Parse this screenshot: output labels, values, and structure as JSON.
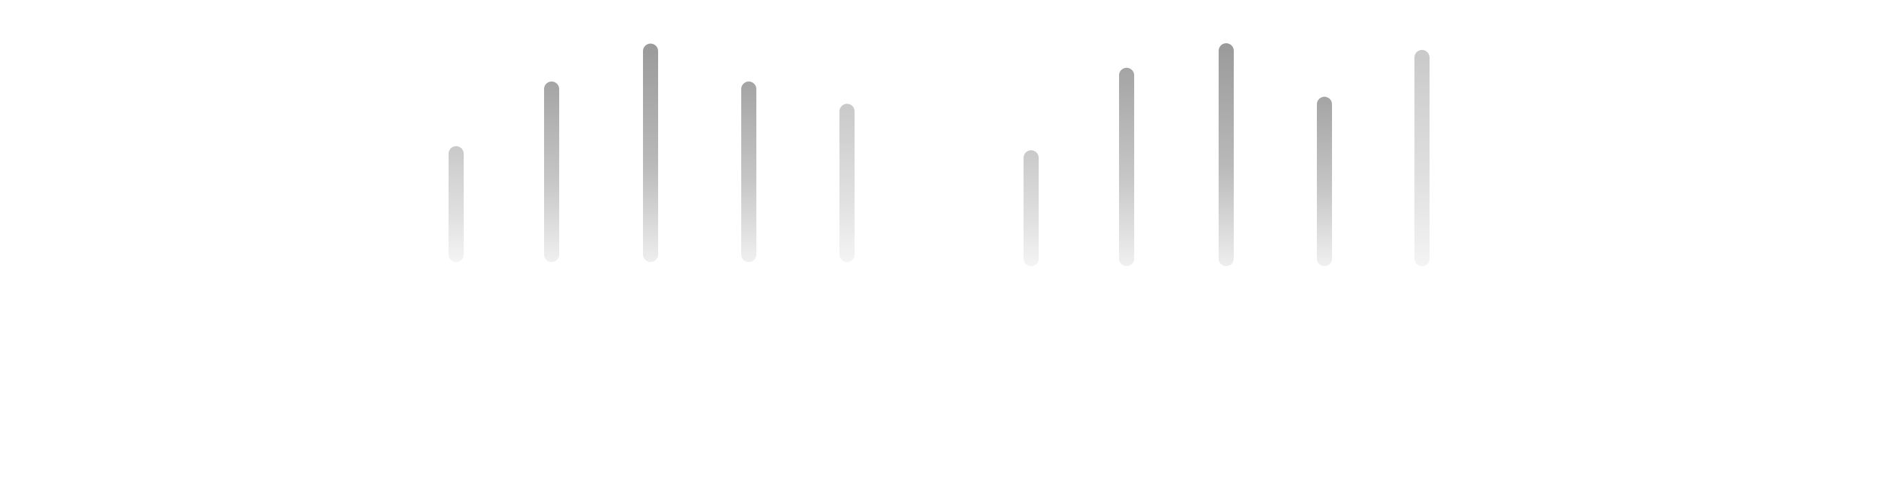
{
  "colors": {
    "background": "#ffffff",
    "bar_dark": "#999999",
    "bar_mid": "#c8c8c8",
    "bar_light": "#f0f0f0"
  },
  "bar_groups": [
    {
      "name": "left-group",
      "bars": [
        {
          "level": 0.52,
          "shade": "light"
        },
        {
          "level": 0.81,
          "shade": "mid"
        },
        {
          "level": 0.98,
          "shade": "dark"
        },
        {
          "level": 0.81,
          "shade": "mid"
        },
        {
          "level": 0.71,
          "shade": "light"
        }
      ]
    },
    {
      "name": "right-group",
      "bars": [
        {
          "level": 0.52,
          "shade": "light"
        },
        {
          "level": 0.89,
          "shade": "mid"
        },
        {
          "level": 1.0,
          "shade": "dark"
        },
        {
          "level": 0.76,
          "shade": "mid"
        },
        {
          "level": 0.97,
          "shade": "light"
        }
      ]
    }
  ]
}
